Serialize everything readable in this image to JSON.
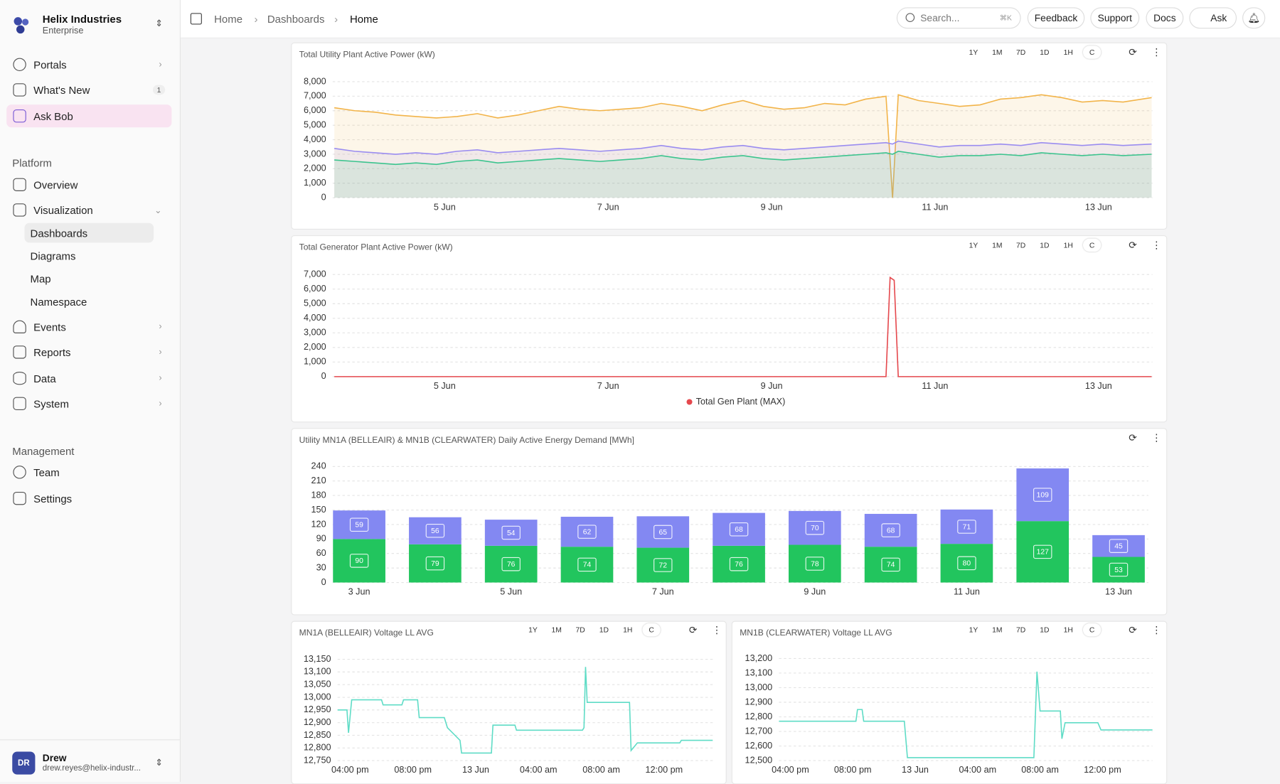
{
  "sidebar": {
    "org": "Helix Industries",
    "plan": "Enterprise",
    "top_items": [
      {
        "label": "Portals"
      },
      {
        "label": "What's New",
        "badge": 1
      },
      {
        "label": "Ask Bob"
      }
    ],
    "sections": [
      {
        "title": "Platform",
        "items": [
          {
            "label": "Overview"
          },
          {
            "label": "Visualization",
            "children": [
              "Dashboards",
              "Diagrams",
              "Map",
              "Namespace"
            ]
          },
          {
            "label": "Events"
          },
          {
            "label": "Reports"
          },
          {
            "label": "Data"
          },
          {
            "label": "System"
          }
        ]
      },
      {
        "title": "Management",
        "items": [
          {
            "label": "Team"
          },
          {
            "label": "Settings"
          }
        ]
      }
    ],
    "user": {
      "initials": "DR",
      "name": "Drew",
      "email": "drew.reyes@helix-industr..."
    }
  },
  "topbar": {
    "breadcrumbs": [
      "Home",
      "Dashboards",
      "Home"
    ],
    "search": "Search...",
    "shortcut": "⌘K",
    "buttons": [
      "Feedback",
      "Support",
      "Docs",
      "Ask"
    ]
  },
  "range_buttons": [
    "1Y",
    "1M",
    "7D",
    "1D",
    "1H",
    "C"
  ],
  "chart_data": [
    {
      "type": "line",
      "title": "Total Utility Plant Active Power (kW)",
      "area": true,
      "grid": true,
      "x": [
        3.65,
        3.9,
        4.15,
        4.4,
        4.65,
        4.9,
        5.15,
        5.4,
        5.65,
        5.9,
        6.15,
        6.4,
        6.65,
        6.9,
        7.15,
        7.4,
        7.65,
        7.9,
        8.15,
        8.4,
        8.65,
        8.9,
        9.15,
        9.4,
        9.65,
        9.9,
        10.15,
        10.4,
        10.48,
        10.55,
        10.8,
        11.05,
        11.3,
        11.55,
        11.8,
        12.05,
        12.3,
        12.55,
        12.8,
        13.05,
        13.3,
        13.65
      ],
      "xlim": [
        3.63,
        13.66
      ],
      "xticks": [
        {
          "value": 5,
          "label": "5 Jun"
        },
        {
          "value": 7,
          "label": "7 Jun"
        },
        {
          "value": 9,
          "label": "9 Jun"
        },
        {
          "value": 11,
          "label": "11 Jun"
        },
        {
          "value": 13,
          "label": "13 Jun"
        }
      ],
      "ylim": [
        0,
        8000
      ],
      "yticks": [
        0,
        {
          "value": 1000,
          "label": "1,000"
        },
        {
          "value": 2000,
          "label": "2,000"
        },
        {
          "value": 3000,
          "label": "3,000"
        },
        {
          "value": 4000,
          "label": "4,000"
        },
        {
          "value": 5000,
          "label": "5,000"
        },
        {
          "value": 6000,
          "label": "6,000"
        },
        {
          "value": 7000,
          "label": "7,000"
        },
        {
          "value": 8000,
          "label": "8,000"
        }
      ],
      "series": [
        {
          "color": "#f2b44a",
          "values": [
            6200,
            6000,
            5900,
            5700,
            5600,
            5500,
            5600,
            5800,
            5500,
            5700,
            6000,
            6300,
            6100,
            6000,
            6100,
            6200,
            6500,
            6300,
            6000,
            6400,
            6700,
            6300,
            6100,
            6200,
            6500,
            6400,
            6800,
            7000,
            0,
            7100,
            6700,
            6500,
            6300,
            6400,
            6800,
            6900,
            7100,
            6900,
            6600,
            6700,
            6600,
            6900
          ]
        },
        {
          "color": "#9a8cf0",
          "values": [
            3400,
            3200,
            3100,
            3000,
            3100,
            3000,
            3200,
            3300,
            3100,
            3200,
            3300,
            3400,
            3300,
            3200,
            3300,
            3400,
            3600,
            3400,
            3300,
            3500,
            3600,
            3400,
            3300,
            3400,
            3500,
            3600,
            3700,
            3800,
            3700,
            3900,
            3700,
            3500,
            3600,
            3600,
            3700,
            3600,
            3800,
            3700,
            3600,
            3700,
            3600,
            3700
          ]
        },
        {
          "color": "#3cc48e",
          "values": [
            2600,
            2500,
            2400,
            2300,
            2400,
            2300,
            2500,
            2600,
            2400,
            2500,
            2600,
            2700,
            2600,
            2500,
            2600,
            2700,
            2900,
            2700,
            2600,
            2800,
            2900,
            2700,
            2600,
            2700,
            2800,
            2900,
            3000,
            3100,
            3000,
            3200,
            3000,
            2800,
            2900,
            2900,
            3000,
            2900,
            3100,
            3000,
            2900,
            3000,
            2900,
            3000
          ]
        }
      ]
    },
    {
      "type": "line",
      "title": "Total Generator Plant Active Power (kW)",
      "grid": true,
      "legend": "bottom",
      "x": [
        3.65,
        10.4,
        10.45,
        10.5,
        10.55,
        13.65
      ],
      "xlim": [
        3.63,
        13.66
      ],
      "xticks": [
        {
          "value": 5,
          "label": "5 Jun"
        },
        {
          "value": 7,
          "label": "7 Jun"
        },
        {
          "value": 9,
          "label": "9 Jun"
        },
        {
          "value": 11,
          "label": "11 Jun"
        },
        {
          "value": 13,
          "label": "13 Jun"
        }
      ],
      "ylim": [
        0,
        7000
      ],
      "yticks": [
        0,
        {
          "value": 1000,
          "label": "1,000"
        },
        {
          "value": 2000,
          "label": "2,000"
        },
        {
          "value": 3000,
          "label": "3,000"
        },
        {
          "value": 4000,
          "label": "4,000"
        },
        {
          "value": 5000,
          "label": "5,000"
        },
        {
          "value": 6000,
          "label": "6,000"
        },
        {
          "value": 7000,
          "label": "7,000"
        }
      ],
      "series": [
        {
          "name": "Total Gen Plant (MAX)",
          "color": "#e5484d",
          "values": [
            0,
            0,
            6800,
            6600,
            0,
            0
          ]
        }
      ]
    },
    {
      "type": "bar",
      "stacked": true,
      "grid": true,
      "title": "Utility MN1A (BELLEAIR) & MN1B (CLEARWATER) Daily Active Energy Demand [MWh]",
      "categories": [
        "3 Jun",
        null,
        "5 Jun",
        null,
        "7 Jun",
        null,
        "9 Jun",
        null,
        "11 Jun",
        null,
        "13 Jun"
      ],
      "ylim": [
        0,
        240
      ],
      "yticks": [
        0,
        30,
        60,
        90,
        120,
        150,
        180,
        210,
        240
      ],
      "series": [
        {
          "color": "#22c55e",
          "values": [
            90,
            79,
            76,
            74,
            72,
            76,
            78,
            74,
            80,
            127,
            53
          ]
        },
        {
          "color": "#8388f2",
          "values": [
            59,
            56,
            54,
            62,
            65,
            68,
            70,
            68,
            71,
            109,
            45
          ]
        }
      ]
    },
    {
      "type": "line",
      "title": "MN1A (BELLEAIR) Voltage LL AVG",
      "grid": true,
      "x": [
        15.2,
        15.8,
        15.9,
        16.1,
        18.0,
        18.1,
        19.3,
        19.4,
        20.3,
        20.4,
        22.0,
        22.2,
        23.0,
        23.1,
        25.0,
        25.1,
        26.5,
        26.6,
        30.8,
        30.9,
        31.0,
        31.1,
        33.8,
        33.9,
        34.3,
        37.0,
        37.1,
        39.1
      ],
      "xlim": [
        15.2,
        39.1
      ],
      "xticks": [
        {
          "value": 16,
          "label": "04:00 pm"
        },
        {
          "value": 20,
          "label": "08:00 pm"
        },
        {
          "value": 24,
          "label": "13 Jun"
        },
        {
          "value": 28,
          "label": "04:00 am"
        },
        {
          "value": 32,
          "label": "08:00 am"
        },
        {
          "value": 36,
          "label": "12:00 pm"
        }
      ],
      "ylim": [
        12750,
        13150
      ],
      "yticks": [
        {
          "value": 12750,
          "label": "12,750"
        },
        {
          "value": 12800,
          "label": "12,800"
        },
        {
          "value": 12850,
          "label": "12,850"
        },
        {
          "value": 12900,
          "label": "12,900"
        },
        {
          "value": 12950,
          "label": "12,950"
        },
        {
          "value": 13000,
          "label": "13,000"
        },
        {
          "value": 13050,
          "label": "13,050"
        },
        {
          "value": 13100,
          "label": "13,100"
        },
        {
          "value": 13150,
          "label": "13,150"
        }
      ],
      "series": [
        {
          "color": "#5fdcc6",
          "values": [
            12950,
            12950,
            12860,
            12990,
            12990,
            12970,
            12970,
            12990,
            12990,
            12920,
            12920,
            12880,
            12830,
            12780,
            12780,
            12890,
            12890,
            12870,
            12870,
            12880,
            13120,
            12980,
            12980,
            12790,
            12820,
            12820,
            12830,
            12830
          ]
        }
      ]
    },
    {
      "type": "line",
      "title": "MN1B (CLEARWATER) Voltage LL AVG",
      "grid": true,
      "x": [
        15.27,
        20.2,
        20.3,
        20.6,
        20.7,
        23.3,
        23.5,
        31.6,
        31.8,
        32.0,
        33.3,
        33.4,
        33.6,
        35.7,
        35.9,
        39.2
      ],
      "xlim": [
        15.27,
        39.2
      ],
      "xticks": [
        {
          "value": 16,
          "label": "04:00 pm"
        },
        {
          "value": 20,
          "label": "08:00 pm"
        },
        {
          "value": 24,
          "label": "13 Jun"
        },
        {
          "value": 28,
          "label": "04:00 am"
        },
        {
          "value": 32,
          "label": "08:00 am"
        },
        {
          "value": 36,
          "label": "12:00 pm"
        }
      ],
      "ylim": [
        12500,
        13200
      ],
      "yticks": [
        {
          "value": 12500,
          "label": "12,500"
        },
        {
          "value": 12600,
          "label": "12,600"
        },
        {
          "value": 12700,
          "label": "12,700"
        },
        {
          "value": 12800,
          "label": "12,800"
        },
        {
          "value": 12900,
          "label": "12,900"
        },
        {
          "value": 13000,
          "label": "13,000"
        },
        {
          "value": 13100,
          "label": "13,100"
        },
        {
          "value": 13200,
          "label": "13,200"
        }
      ],
      "series": [
        {
          "color": "#5fdcc6",
          "values": [
            12770,
            12770,
            12850,
            12850,
            12770,
            12770,
            12520,
            12520,
            13110,
            12840,
            12840,
            12650,
            12760,
            12760,
            12710,
            12710
          ]
        }
      ]
    }
  ]
}
